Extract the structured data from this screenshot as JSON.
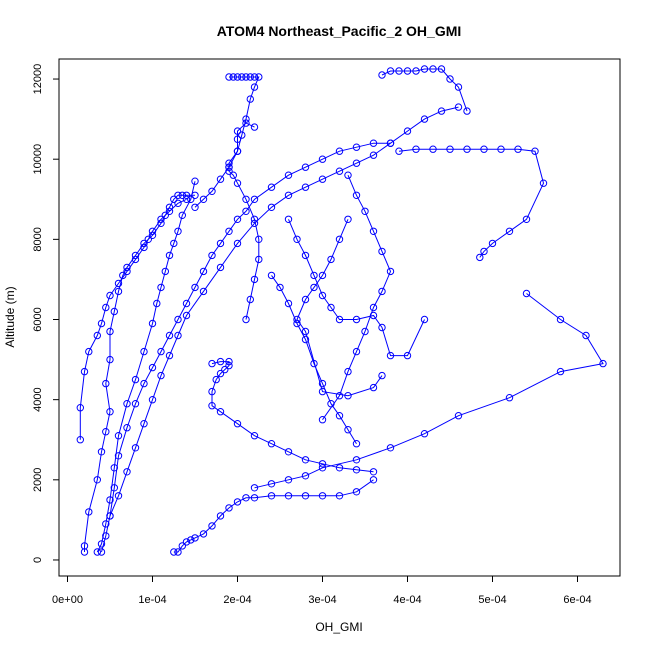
{
  "chart_data": {
    "type": "scatter",
    "title": "ATOM4 Northeast_Pacific_2 OH_GMI",
    "xlabel": "OH_GMI",
    "ylabel": "Altitude (m)",
    "xlim": [
      -1e-05,
      0.00065
    ],
    "ylim": [
      -400,
      12500
    ],
    "x_ticks": [
      0,
      0.0001,
      0.0002,
      0.0003,
      0.0004,
      0.0005,
      0.0006
    ],
    "x_tick_labels": [
      "0e+00",
      "1e-04",
      "2e-04",
      "3e-04",
      "4e-04",
      "5e-04",
      "6e-04"
    ],
    "y_ticks": [
      0,
      2000,
      4000,
      6000,
      8000,
      10000,
      12000
    ],
    "y_tick_labels": [
      "0",
      "2000",
      "4000",
      "6000",
      "8000",
      "10000",
      "12000"
    ],
    "grid": false,
    "series_color": "#0000ff",
    "marker": "open-circle",
    "series": [
      {
        "x": [
          2e-05,
          2e-05,
          2.5e-05,
          3.5e-05,
          4e-05,
          4.5e-05,
          5e-05,
          4.5e-05,
          5e-05,
          5e-05,
          5.5e-05,
          6e-05,
          6.5e-05,
          7e-05,
          8e-05,
          9e-05,
          0.0001,
          0.00011,
          0.000115,
          0.00012,
          0.000125,
          0.00013,
          0.000135,
          0.00014,
          0.00015
        ],
        "y": [
          200,
          350,
          1200,
          2000,
          2700,
          3200,
          3700,
          4400,
          5000,
          5700,
          6200,
          6700,
          7100,
          7300,
          7600,
          7900,
          8100,
          8400,
          8600,
          8800,
          9000,
          9100,
          9100,
          9100,
          9100
        ]
      },
      {
        "x": [
          3.5e-05,
          4e-05,
          4.5e-05,
          5e-05,
          5.5e-05,
          6e-05,
          7e-05,
          8e-05,
          9e-05,
          0.0001,
          0.000105,
          0.00011,
          0.000115,
          0.00012,
          0.000125,
          0.00013,
          0.000135,
          0.000145,
          0.00015
        ],
        "y": [
          200,
          400,
          900,
          1500,
          2300,
          3100,
          3900,
          4500,
          5200,
          5900,
          6400,
          6800,
          7200,
          7600,
          7900,
          8200,
          8600,
          9000,
          9450
        ]
      },
      {
        "x": [
          1.5e-05,
          1.5e-05,
          2e-05,
          2.5e-05,
          3.5e-05,
          4e-05,
          4.5e-05,
          5e-05,
          6e-05,
          7e-05,
          8e-05,
          9e-05,
          9.5e-05,
          0.0001,
          0.00011,
          0.00012,
          0.00013,
          0.00014
        ],
        "y": [
          3000,
          3800,
          4700,
          5200,
          5600,
          5900,
          6300,
          6600,
          6900,
          7200,
          7500,
          7800,
          8000,
          8200,
          8500,
          8700,
          8900,
          9000
        ]
      },
      {
        "x": [
          4e-05,
          4.5e-05,
          5e-05,
          5.5e-05,
          6e-05,
          7e-05,
          8e-05,
          9e-05,
          0.0001,
          0.00011,
          0.00012,
          0.00013,
          0.00014,
          0.00015,
          0.00016,
          0.00017,
          0.00018,
          0.00019,
          0.0002,
          0.00021,
          0.00022,
          0.00024,
          0.00026,
          0.00028,
          0.0003,
          0.00032,
          0.00034,
          0.00036,
          0.00038
        ],
        "y": [
          200,
          600,
          1100,
          1800,
          2600,
          3300,
          3900,
          4400,
          4800,
          5200,
          5600,
          6000,
          6400,
          6800,
          7200,
          7600,
          7900,
          8200,
          8500,
          8700,
          9000,
          9300,
          9600,
          9800,
          10000,
          10200,
          10300,
          10400,
          10400
        ]
      },
      {
        "x": [
          5e-05,
          6e-05,
          7e-05,
          8e-05,
          9e-05,
          0.0001,
          0.00011,
          0.00012,
          0.00013,
          0.00014,
          0.00016,
          0.00018,
          0.0002,
          0.00022,
          0.00024,
          0.00026,
          0.00028,
          0.0003,
          0.00032,
          0.00034,
          0.00036,
          0.00038,
          0.0004,
          0.00042,
          0.00044,
          0.00046
        ],
        "y": [
          1100,
          1600,
          2200,
          2800,
          3400,
          4000,
          4600,
          5100,
          5600,
          6100,
          6700,
          7300,
          7900,
          8400,
          8800,
          9100,
          9300,
          9500,
          9700,
          9900,
          10100,
          10400,
          10700,
          11000,
          11200,
          11300
        ]
      },
      {
        "x": [
          0.00022,
          0.00021,
          0.0002,
          0.0002,
          0.0002,
          0.00019,
          0.00019,
          0.00019,
          0.000195,
          0.0002,
          0.00021,
          0.00022,
          0.000225,
          0.000225,
          0.00022,
          0.000215,
          0.00021
        ],
        "y": [
          10800,
          10900,
          10700,
          10500,
          10200,
          9900,
          9800,
          9700,
          9600,
          9400,
          9000,
          8500,
          8000,
          7500,
          7000,
          6500,
          6000
        ]
      },
      {
        "x": [
          0.00019,
          0.000195,
          0.0002,
          0.000205,
          0.00021,
          0.000215,
          0.00022,
          0.000225,
          0.00022,
          0.000215,
          0.00021,
          0.000205,
          0.0002,
          0.00019,
          0.00018,
          0.00017,
          0.00016,
          0.00015
        ],
        "y": [
          12050,
          12050,
          12050,
          12050,
          12050,
          12050,
          12050,
          12050,
          11800,
          11500,
          11000,
          10600,
          10200,
          9800,
          9500,
          9200,
          9000,
          8800
        ]
      },
      {
        "x": [
          0.00037,
          0.00038,
          0.00039,
          0.0004,
          0.00041,
          0.00042,
          0.00043,
          0.00044,
          0.00045,
          0.00046,
          0.00047
        ],
        "y": [
          12100,
          12200,
          12200,
          12200,
          12200,
          12250,
          12250,
          12250,
          12000,
          11800,
          11200
        ]
      },
      {
        "x": [
          0.00039,
          0.00041,
          0.00043,
          0.00045,
          0.00047,
          0.00049,
          0.00051,
          0.00053,
          0.00055,
          0.00056,
          0.00054,
          0.00052,
          0.0005,
          0.00049,
          0.000485
        ],
        "y": [
          10200,
          10250,
          10250,
          10250,
          10250,
          10250,
          10250,
          10250,
          10200,
          9400,
          8500,
          8200,
          7900,
          7700,
          7550
        ]
      },
      {
        "x": [
          0.00054,
          0.00058,
          0.00061,
          0.00063,
          0.00058,
          0.00052,
          0.00046,
          0.00042,
          0.00038,
          0.00034,
          0.0003,
          0.00028,
          0.00026,
          0.00024,
          0.00022
        ],
        "y": [
          6650,
          6000,
          5600,
          4900,
          4700,
          4050,
          3600,
          3150,
          2800,
          2500,
          2300,
          2100,
          2000,
          1900,
          1800
        ]
      },
      {
        "x": [
          0.000125,
          0.00013,
          0.000135,
          0.00014,
          0.000145,
          0.00015,
          0.00016,
          0.00017,
          0.00018,
          0.00019,
          0.0002,
          0.00021,
          0.00022,
          0.00024,
          0.00026,
          0.00028,
          0.0003,
          0.00032,
          0.00034,
          0.00036
        ],
        "y": [
          200,
          200,
          350,
          450,
          500,
          550,
          650,
          850,
          1100,
          1300,
          1450,
          1550,
          1550,
          1600,
          1600,
          1600,
          1600,
          1600,
          1700,
          2000
        ]
      },
      {
        "x": [
          0.00017,
          0.00018,
          0.00019,
          0.00019,
          0.000185,
          0.00018,
          0.000175,
          0.00017,
          0.00017,
          0.00018,
          0.0002,
          0.00022,
          0.00024,
          0.00026,
          0.00028,
          0.0003,
          0.00032,
          0.00034,
          0.00036
        ],
        "y": [
          4900,
          4950,
          4950,
          4850,
          4750,
          4650,
          4500,
          4200,
          3850,
          3700,
          3400,
          3100,
          2900,
          2700,
          2500,
          2400,
          2300,
          2250,
          2200
        ]
      },
      {
        "x": [
          0.00026,
          0.00027,
          0.00028,
          0.00029,
          0.0003,
          0.00031,
          0.00032,
          0.00034,
          0.00036,
          0.00037,
          0.00038,
          0.0004,
          0.00042
        ],
        "y": [
          8500,
          8000,
          7600,
          7100,
          6600,
          6300,
          6000,
          6000,
          6100,
          5800,
          5100,
          5100,
          6000
        ]
      },
      {
        "x": [
          0.00024,
          0.00025,
          0.00026,
          0.00027,
          0.00028,
          0.00029,
          0.0003,
          0.00031,
          0.00032,
          0.00033,
          0.00034
        ],
        "y": [
          7100,
          6800,
          6400,
          5900,
          5500,
          4900,
          4400,
          3900,
          3600,
          3250,
          2900
        ]
      },
      {
        "x": [
          0.00033,
          0.00032,
          0.00031,
          0.0003,
          0.00029,
          0.00028,
          0.00027,
          0.00028,
          0.0003,
          0.00033,
          0.00036,
          0.00037
        ],
        "y": [
          8500,
          8000,
          7500,
          7100,
          6800,
          6500,
          6000,
          5700,
          4200,
          4100,
          4300,
          4600
        ]
      },
      {
        "x": [
          0.00033,
          0.00034,
          0.00035,
          0.00036,
          0.00037,
          0.00038,
          0.00037,
          0.00036,
          0.00035,
          0.00034,
          0.00033,
          0.00032,
          0.0003
        ],
        "y": [
          9600,
          9100,
          8700,
          8200,
          7700,
          7200,
          6700,
          6300,
          5700,
          5200,
          4700,
          4100,
          3500
        ]
      }
    ]
  }
}
